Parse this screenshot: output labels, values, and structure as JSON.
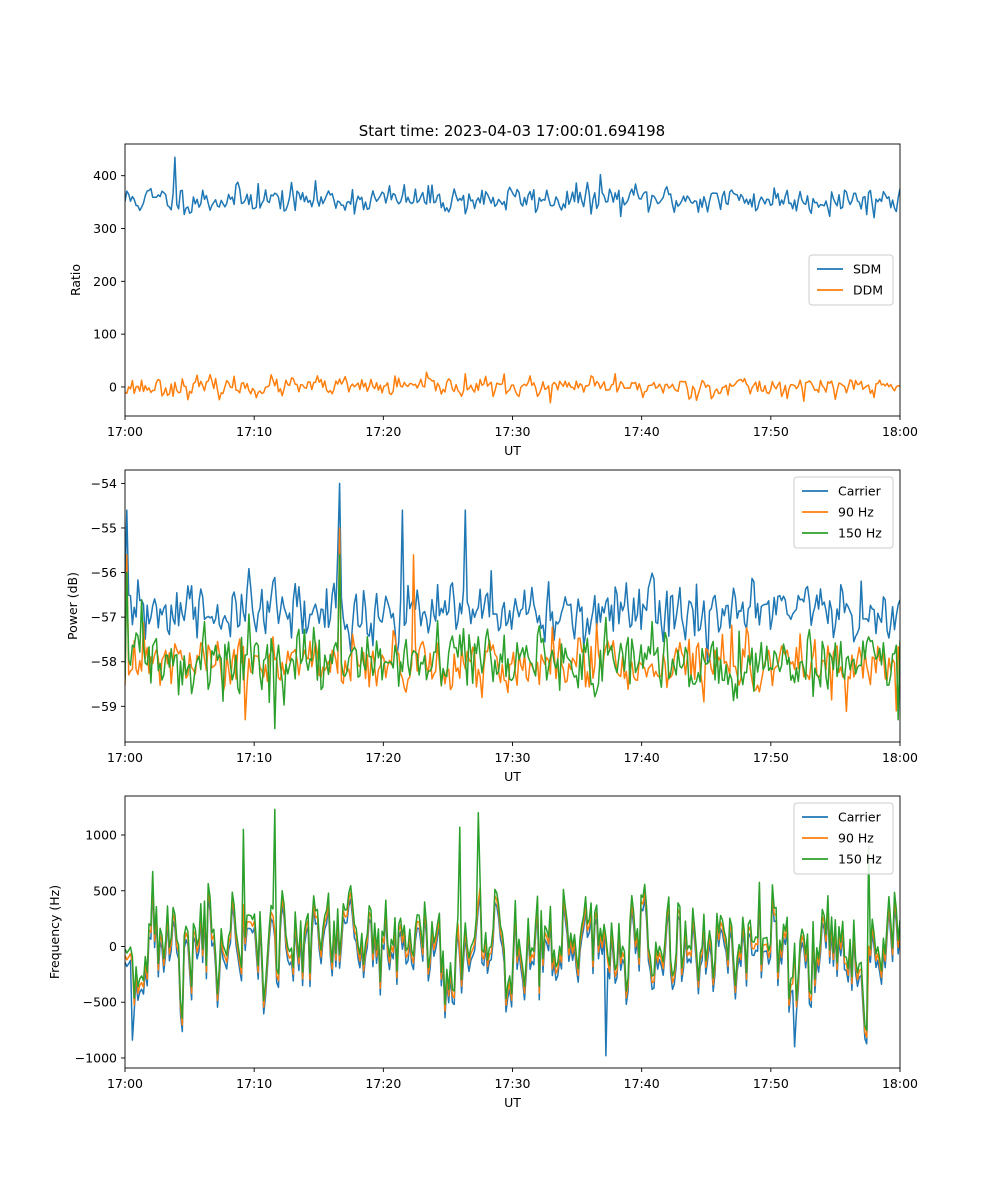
{
  "figure": {
    "title": "Start time: 2023-04-03 17:00:01.694198"
  },
  "chart_data": [
    {
      "type": "line",
      "xlabel": "UT",
      "ylabel": "Ratio",
      "x_ticks": [
        "17:00",
        "17:10",
        "17:20",
        "17:30",
        "17:40",
        "17:50",
        "18:00"
      ],
      "x_range_minutes": [
        0,
        60
      ],
      "ylim": [
        -55,
        460
      ],
      "y_ticks": [
        0,
        100,
        200,
        300,
        400
      ],
      "legend": "center-right",
      "series": [
        {
          "name": "SDM",
          "color": "#1f77b4",
          "mean": 355,
          "noise": 13,
          "seed": 11,
          "spikes": [
            [
              3.8,
              435
            ],
            [
              36.8,
              402
            ],
            [
              10.3,
              385
            ]
          ]
        },
        {
          "name": "DDM",
          "color": "#ff7f0e",
          "mean": 0,
          "noise": 9,
          "seed": 23,
          "spikes": [
            [
              26.3,
              25
            ],
            [
              33.0,
              -30
            ],
            [
              38.0,
              25
            ]
          ]
        }
      ]
    },
    {
      "type": "line",
      "xlabel": "UT",
      "ylabel": "Power (dB)",
      "x_ticks": [
        "17:00",
        "17:10",
        "17:20",
        "17:30",
        "17:40",
        "17:50",
        "18:00"
      ],
      "x_range_minutes": [
        0,
        60
      ],
      "ylim": [
        -59.8,
        -53.7
      ],
      "y_ticks": [
        -59,
        -58,
        -57,
        -56,
        -55,
        -54
      ],
      "legend": "top-right",
      "series": [
        {
          "name": "Carrier",
          "color": "#1f77b4",
          "mean": -56.9,
          "noise": 0.35,
          "seed": 31,
          "spikes": [
            [
              0.1,
              -54.6
            ],
            [
              16.6,
              -54.0
            ],
            [
              21.5,
              -54.6
            ],
            [
              26.4,
              -54.6
            ],
            [
              16.4,
              -55.6
            ]
          ]
        },
        {
          "name": "90 Hz",
          "color": "#ff7f0e",
          "mean": -58.05,
          "noise": 0.3,
          "seed": 47,
          "spikes": [
            [
              0.1,
              -55.6
            ],
            [
              16.6,
              -55.0
            ],
            [
              22.4,
              -55.6
            ],
            [
              9.3,
              -59.3
            ],
            [
              59.7,
              -59.1
            ]
          ]
        },
        {
          "name": "150 Hz",
          "color": "#2ca02c",
          "mean": -58.0,
          "noise": 0.35,
          "seed": 59,
          "spikes": [
            [
              0.2,
              -56.0
            ],
            [
              16.6,
              -55.6
            ],
            [
              11.6,
              -59.5
            ],
            [
              59.8,
              -59.3
            ]
          ]
        }
      ]
    },
    {
      "type": "line",
      "xlabel": "UT",
      "ylabel": "Frequency (Hz)",
      "x_ticks": [
        "17:00",
        "17:10",
        "17:20",
        "17:30",
        "17:40",
        "17:50",
        "18:00"
      ],
      "x_range_minutes": [
        0,
        60
      ],
      "ylim": [
        -1090,
        1350
      ],
      "y_ticks": [
        -1000,
        -500,
        0,
        500,
        1000
      ],
      "legend": "top-right",
      "series": [
        {
          "name": "Carrier",
          "color": "#1f77b4",
          "mean": -40,
          "noise": 310,
          "seed": 71,
          "offset": -60,
          "spikes": [
            [
              37.3,
              -980
            ],
            [
              0.6,
              -840
            ],
            [
              51.9,
              -900
            ]
          ]
        },
        {
          "name": "90 Hz",
          "color": "#ff7f0e",
          "mean": 0,
          "noise": 310,
          "seed": 71,
          "offset": 0,
          "spikes": []
        },
        {
          "name": "150 Hz",
          "color": "#2ca02c",
          "mean": 40,
          "noise": 310,
          "seed": 71,
          "offset": 60,
          "spikes": [
            [
              11.6,
              1230
            ],
            [
              27.3,
              1200
            ],
            [
              25.9,
              1070
            ],
            [
              57.6,
              900
            ],
            [
              9.2,
              1050
            ]
          ]
        }
      ]
    }
  ]
}
